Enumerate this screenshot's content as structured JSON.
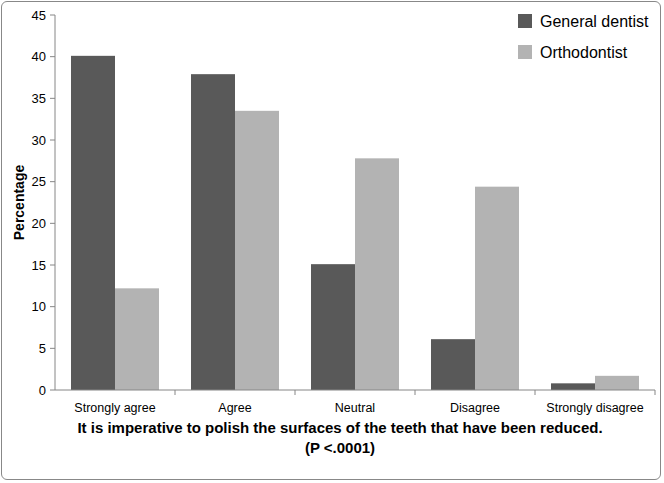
{
  "chart_data": {
    "type": "bar",
    "x_label": "It is imperative to polish the surfaces of the teeth that have been reduced.  (P <.0001)",
    "y_label": "Percentage",
    "categories": [
      "Strongly agree",
      "Agree",
      "Neutral",
      "Disagree",
      "Strongly disagree"
    ],
    "series": [
      {
        "name": "General dentist",
        "color": "#595959",
        "values": [
          40.1,
          37.9,
          15.1,
          6.1,
          0.8
        ]
      },
      {
        "name": "Orthodontist",
        "color": "#b3b3b3",
        "values": [
          12.2,
          33.5,
          27.8,
          24.4,
          1.7
        ]
      }
    ],
    "ylim": [
      0,
      45
    ],
    "yticks": [
      0,
      5,
      10,
      15,
      20,
      25,
      30,
      35,
      40,
      45
    ],
    "grid": false,
    "legend": "upper right"
  }
}
